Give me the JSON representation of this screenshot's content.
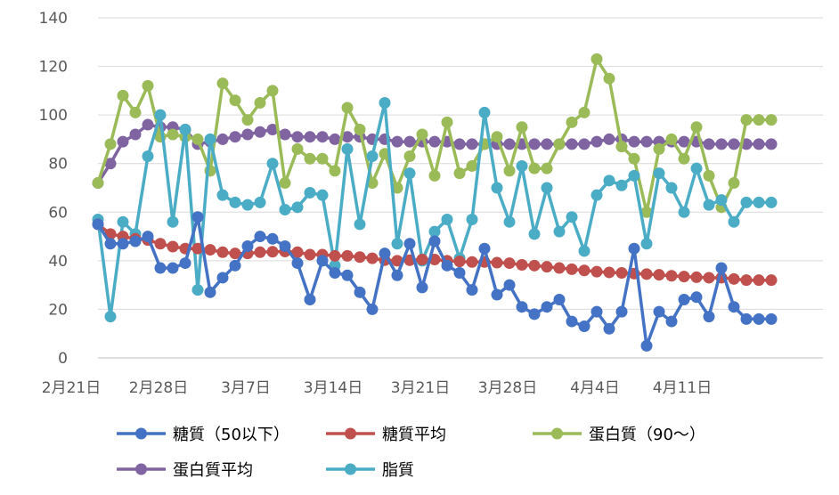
{
  "chart_data": {
    "type": "line",
    "title": "",
    "xlabel": "",
    "ylabel": "",
    "ylim": [
      0,
      140
    ],
    "yticks": [
      "0",
      "20",
      "40",
      "60",
      "80",
      "100",
      "120",
      "140"
    ],
    "xticks": [
      "2月21日",
      "2月28日",
      "3月7日",
      "3月14日",
      "3月21日",
      "3月28日",
      "4月4日",
      "4月11日"
    ],
    "x_start": "2月21日",
    "x_count": 55,
    "grid": "horizontal",
    "legend_position": "bottom",
    "series": [
      {
        "name": "糖質（50以下）",
        "color": "#4472C4",
        "values": [
          55,
          47,
          47,
          48,
          50,
          37,
          37,
          39,
          58,
          27,
          33,
          38,
          46,
          50,
          49,
          46,
          39,
          24,
          40,
          35,
          34,
          27,
          20,
          43,
          34,
          47,
          29,
          48,
          38,
          35,
          28,
          45,
          26,
          30,
          21,
          18,
          21,
          24,
          15,
          13,
          19,
          12,
          19,
          45,
          5,
          19,
          15,
          24,
          25,
          17,
          37,
          21,
          16,
          16,
          16
        ]
      },
      {
        "name": "糖質平均",
        "color": "#C0504D",
        "values": [
          55,
          51,
          50,
          49,
          48.5,
          47,
          45.8,
          45,
          45,
          44.5,
          43.5,
          43,
          43,
          43.5,
          43.7,
          43.8,
          43.5,
          42.5,
          42.5,
          42,
          42,
          41.5,
          41,
          40.2,
          40,
          40.2,
          40.5,
          40.5,
          40,
          39.7,
          39.5,
          39.5,
          39.2,
          39,
          38.3,
          38,
          37.5,
          37,
          36.5,
          36,
          35.5,
          35.2,
          35,
          34.7,
          34.5,
          34.2,
          33.8,
          33.5,
          33.2,
          33,
          33,
          32.5,
          32,
          32,
          32
        ]
      },
      {
        "name": "蛋白質（90〜）",
        "color": "#9BBB59",
        "values": [
          72,
          88,
          108,
          101,
          112,
          91,
          92,
          91,
          90,
          77,
          113,
          106,
          98,
          105,
          110,
          72,
          86,
          82,
          82,
          77,
          103,
          94,
          72,
          84,
          70,
          83,
          92,
          75,
          97,
          76,
          79,
          88,
          91,
          77,
          95,
          78,
          78,
          88,
          97,
          101,
          123,
          115,
          87,
          82,
          60,
          86,
          90,
          82,
          95,
          75,
          62,
          72,
          98,
          98,
          98
        ]
      },
      {
        "name": "蛋白質平均",
        "color": "#8064A2",
        "values": [
          72,
          80,
          89,
          92,
          96,
          95,
          95,
          94,
          88,
          89,
          90,
          91,
          92,
          93,
          94,
          92,
          91,
          91,
          91,
          90,
          91,
          91,
          90,
          90,
          89,
          89,
          89,
          89,
          89,
          88,
          88,
          88,
          88,
          88,
          88,
          88,
          88,
          88,
          88,
          88,
          89,
          90,
          90,
          89,
          89,
          89,
          89,
          89,
          89,
          88,
          88,
          88,
          88,
          88,
          88
        ]
      },
      {
        "name": "脂質",
        "color": "#4BACC6",
        "values": [
          57,
          17,
          56,
          51,
          83,
          100,
          56,
          94,
          28,
          90,
          67,
          64,
          63,
          64,
          80,
          61,
          62,
          68,
          67,
          38,
          86,
          55,
          83,
          105,
          47,
          76,
          40,
          52,
          57,
          41,
          57,
          101,
          70,
          56,
          79,
          51,
          70,
          52,
          58,
          44,
          67,
          73,
          71,
          75,
          47,
          76,
          70,
          60,
          78,
          63,
          65,
          56,
          64,
          64,
          64
        ]
      }
    ]
  }
}
